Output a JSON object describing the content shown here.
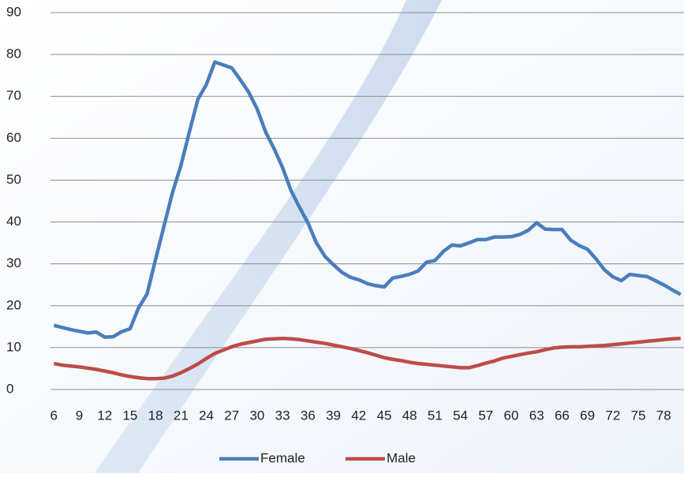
{
  "chart_data": {
    "type": "line",
    "x": [
      6,
      7,
      8,
      9,
      10,
      11,
      12,
      13,
      14,
      15,
      16,
      17,
      18,
      19,
      20,
      21,
      22,
      23,
      24,
      25,
      26,
      27,
      28,
      29,
      30,
      31,
      32,
      33,
      34,
      35,
      36,
      37,
      38,
      39,
      40,
      41,
      42,
      43,
      44,
      45,
      46,
      47,
      48,
      49,
      50,
      51,
      52,
      53,
      54,
      55,
      56,
      57,
      58,
      59,
      60,
      61,
      62,
      63,
      64,
      65,
      66,
      67,
      68,
      69,
      70,
      71,
      72,
      73,
      74,
      75,
      76,
      77,
      78,
      79,
      80
    ],
    "series": [
      {
        "name": "Female",
        "color": "#4a7ebb",
        "values": [
          15.3,
          14.8,
          14.3,
          13.9,
          13.5,
          13.7,
          12.5,
          12.6,
          13.8,
          14.5,
          19.5,
          22.8,
          31,
          39,
          47,
          53.5,
          61.5,
          69.3,
          72.8,
          78.2,
          77.5,
          76.8,
          74,
          71,
          67,
          61.5,
          57.5,
          53,
          47.5,
          43.5,
          39.8,
          35,
          31.8,
          29.8,
          28,
          26.8,
          26.2,
          25.3,
          24.8,
          24.5,
          26.6,
          27,
          27.5,
          28.3,
          30.4,
          30.8,
          33,
          34.5,
          34.3,
          35,
          35.8,
          35.8,
          36.4,
          36.4,
          36.5,
          37,
          38,
          39.8,
          38.3,
          38.2,
          38.2,
          35.7,
          34.4,
          33.5,
          31.2,
          28.6,
          26.9,
          26,
          27.5,
          27.2,
          27,
          26,
          25,
          23.8,
          22.7
        ]
      },
      {
        "name": "Male",
        "color": "#be4b48",
        "values": [
          6.2,
          5.8,
          5.6,
          5.4,
          5.1,
          4.8,
          4.4,
          4,
          3.5,
          3.1,
          2.8,
          2.6,
          2.6,
          2.7,
          3.2,
          4,
          5,
          6.1,
          7.4,
          8.6,
          9.4,
          10.2,
          10.8,
          11.2,
          11.6,
          12,
          12.1,
          12.2,
          12.1,
          11.9,
          11.6,
          11.3,
          11,
          10.6,
          10.2,
          9.8,
          9.3,
          8.8,
          8.2,
          7.6,
          7.2,
          6.9,
          6.5,
          6.2,
          6,
          5.8,
          5.6,
          5.4,
          5.2,
          5.2,
          5.7,
          6.3,
          6.8,
          7.5,
          7.9,
          8.3,
          8.7,
          9,
          9.5,
          9.9,
          10.1,
          10.2,
          10.2,
          10.3,
          10.4,
          10.5,
          10.7,
          10.9,
          11.1,
          11.3,
          11.5,
          11.7,
          11.9,
          12.1,
          12.2
        ]
      }
    ],
    "xlim": [
      5.6,
      80.4
    ],
    "xticks": [
      6,
      9,
      12,
      15,
      18,
      21,
      24,
      27,
      30,
      33,
      36,
      39,
      42,
      45,
      48,
      51,
      54,
      57,
      60,
      63,
      66,
      69,
      72,
      75,
      78
    ],
    "ylim": [
      0,
      90
    ],
    "yticks": [
      0,
      10,
      20,
      30,
      40,
      50,
      60,
      70,
      80,
      90
    ],
    "grid": true,
    "legend": "bottom"
  }
}
